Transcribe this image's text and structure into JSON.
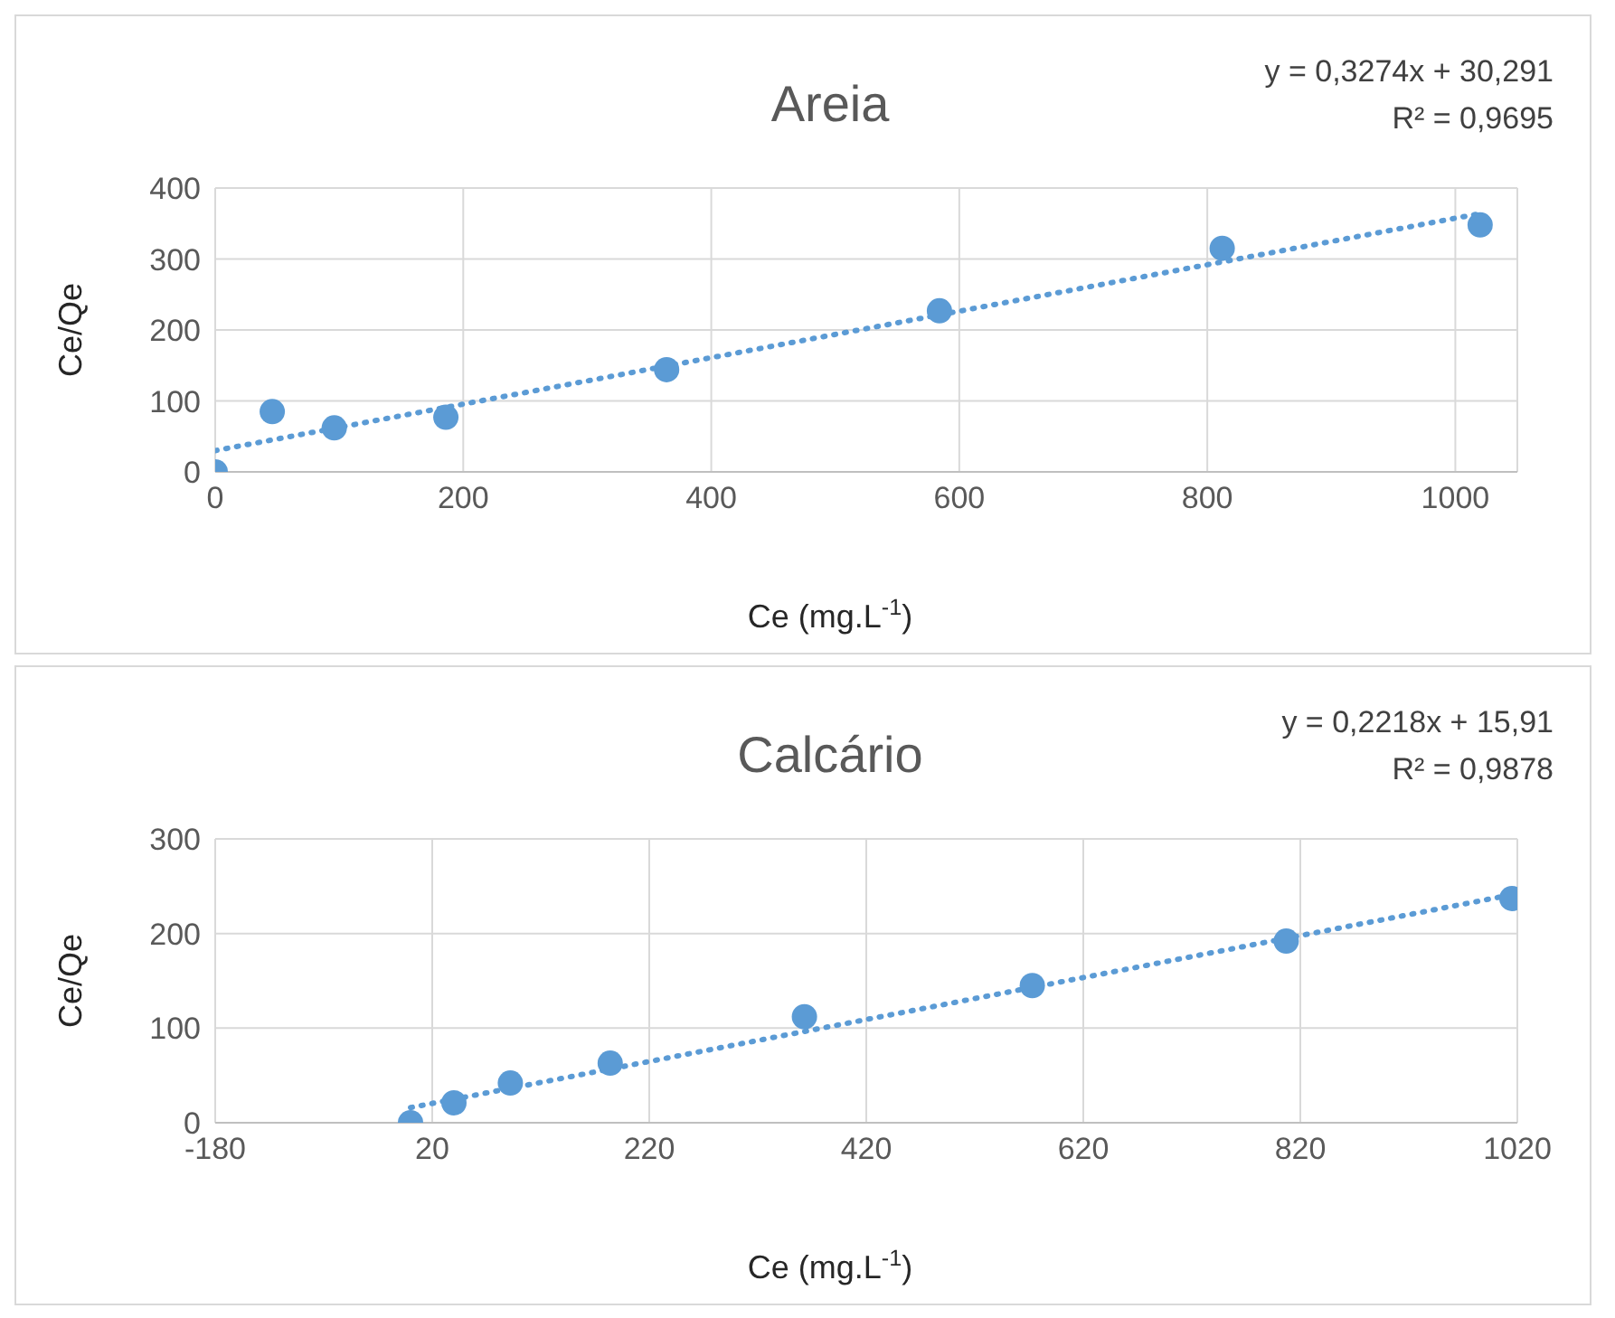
{
  "chart_data": [
    {
      "type": "scatter",
      "title": "Areia",
      "xlabel": "Ce (mg.L$^{-1}$)",
      "ylabel": "Ce/Qe",
      "annotations": [
        "y = 0,3274x + 30,291",
        "R² = 0,9695"
      ],
      "xlim": [
        0,
        1050
      ],
      "xticks": [
        0,
        200,
        400,
        600,
        800,
        1000
      ],
      "ylim": [
        0,
        400
      ],
      "yticks": [
        0,
        100,
        200,
        300,
        400
      ],
      "grid": true,
      "legend": false,
      "series": [
        {
          "color": "#5b9bd5",
          "marker": "circle",
          "x": [
            0,
            46,
            96,
            186,
            364,
            584,
            812,
            1020
          ],
          "values": [
            0,
            85,
            62,
            77,
            144,
            227,
            315,
            348
          ]
        },
        {
          "type": "line",
          "color": "#5b9bd5",
          "marker": "none",
          "line_style": "dotted",
          "x": [
            0,
            1020
          ],
          "values": [
            30,
            364
          ]
        }
      ]
    },
    {
      "type": "scatter",
      "title": "Calcário",
      "xlabel": "Ce (mg.L$^{-1}$)",
      "ylabel": "Ce/Qe",
      "annotations": [
        "y = 0,2218x + 15,91",
        "R² = 0,9878"
      ],
      "xlim": [
        -180,
        1020
      ],
      "xticks": [
        -180,
        20,
        220,
        420,
        620,
        820,
        1020
      ],
      "ylim": [
        0,
        300
      ],
      "yticks": [
        0,
        100,
        200,
        300
      ],
      "grid": true,
      "legend": false,
      "series": [
        {
          "color": "#5b9bd5",
          "marker": "circle",
          "x": [
            0,
            40,
            92,
            184,
            363,
            573,
            807,
            1015
          ],
          "values": [
            0,
            21,
            42,
            63,
            112,
            145,
            192,
            237
          ]
        },
        {
          "type": "line",
          "color": "#5b9bd5",
          "marker": "none",
          "line_style": "dotted",
          "x": [
            0,
            1015
          ],
          "values": [
            16,
            241
          ]
        }
      ]
    }
  ]
}
